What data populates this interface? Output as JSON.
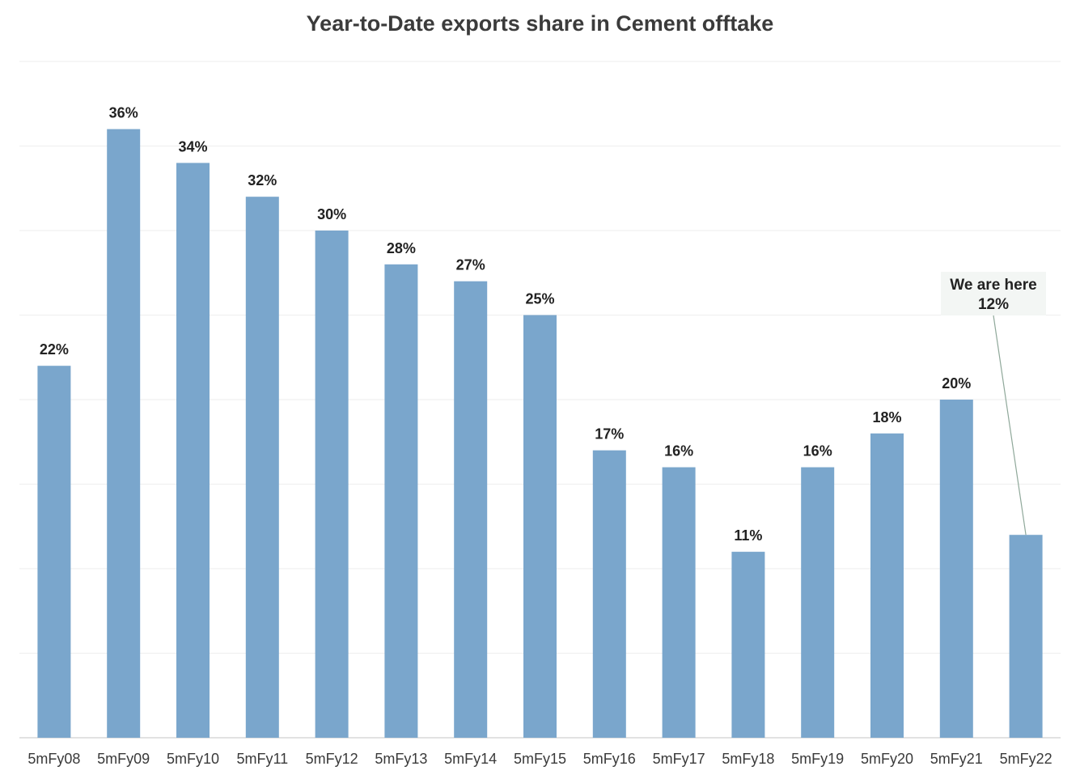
{
  "chart_data": {
    "type": "bar",
    "title": "Year-to-Date exports share in Cement offtake",
    "xlabel": "",
    "ylabel": "",
    "categories": [
      "5mFy08",
      "5mFy09",
      "5mFy10",
      "5mFy11",
      "5mFy12",
      "5mFy13",
      "5mFy14",
      "5mFy15",
      "5mFy16",
      "5mFy17",
      "5mFy18",
      "5mFy19",
      "5mFy20",
      "5mFy21",
      "5mFy22"
    ],
    "values": [
      22,
      36,
      34,
      32,
      30,
      28,
      27,
      25,
      17,
      16,
      11,
      16,
      18,
      20,
      12
    ],
    "value_labels": [
      "22%",
      "36%",
      "34%",
      "32%",
      "30%",
      "28%",
      "27%",
      "25%",
      "17%",
      "16%",
      "11%",
      "16%",
      "18%",
      "20%",
      ""
    ],
    "ylim": [
      0,
      40
    ],
    "grid": true,
    "bar_color": "#7aa6cc",
    "annotation": {
      "category": "5mFy22",
      "line1": "We are here",
      "line2": "12%"
    }
  }
}
